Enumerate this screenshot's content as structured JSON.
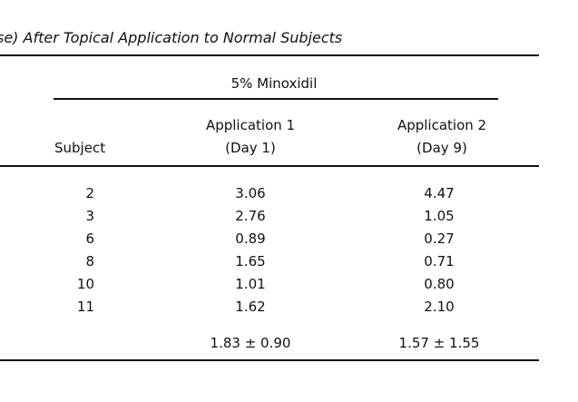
{
  "title": "se) After Topical Application to Normal Subjects",
  "group_header": "5% Minoxidil",
  "columns": {
    "subject": "Subject",
    "app1_line1": "Application 1",
    "app1_line2": "(Day 1)",
    "app2_line1": "Application 2",
    "app2_line2": "(Day 9)"
  },
  "rows": [
    {
      "subject": "2",
      "app1": "3.06",
      "app2": "4.47"
    },
    {
      "subject": "3",
      "app1": "2.76",
      "app2": "1.05"
    },
    {
      "subject": "6",
      "app1": "0.89",
      "app2": "0.27"
    },
    {
      "subject": "8",
      "app1": "1.65",
      "app2": "0.71"
    },
    {
      "subject": "10",
      "app1": "1.01",
      "app2": "0.80"
    },
    {
      "subject": "11",
      "app1": "1.62",
      "app2": "2.10"
    }
  ],
  "summary": {
    "app1": "1.83 ± 0.90",
    "app2": "1.57 ± 1.55"
  }
}
